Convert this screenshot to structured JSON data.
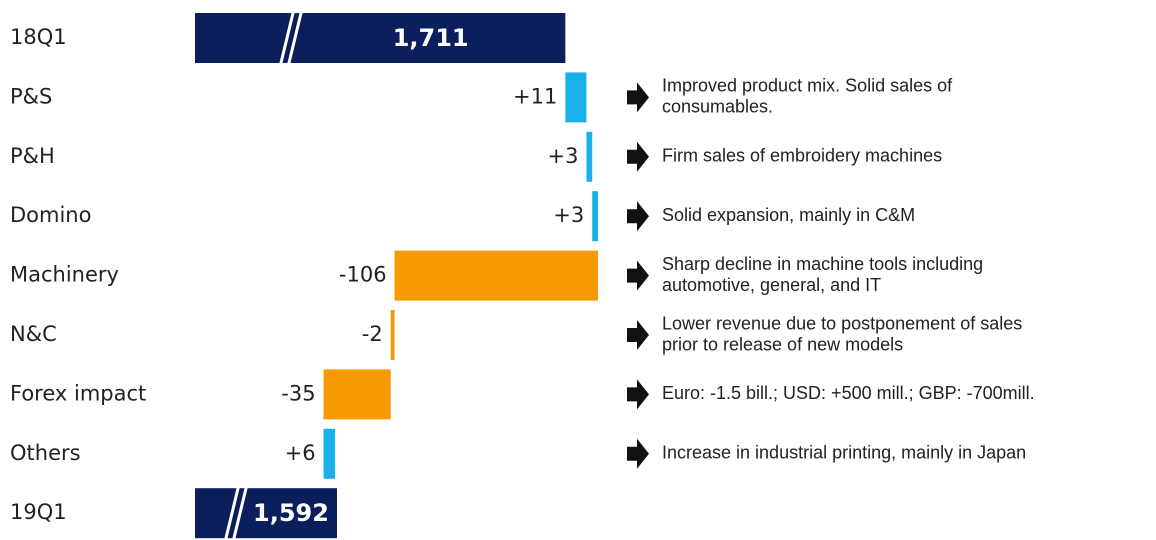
{
  "chart_data": {
    "type": "waterfall",
    "categories": [
      "18Q1",
      "P&S",
      "P&H",
      "Domino",
      "Machinery",
      "N&C",
      "Forex impact",
      "Others",
      "19Q1"
    ],
    "values": [
      1711,
      11,
      3,
      3,
      -106,
      -2,
      -35,
      6,
      1592
    ],
    "value_labels": [
      "1,711",
      "+11",
      "+3",
      "+3",
      "-106",
      "-2",
      "-35",
      "+6",
      "1,592"
    ],
    "colors": {
      "total": "#0b1f5c",
      "increase": "#1ab0e8",
      "decrease": "#f59a00"
    },
    "xlim": [
      1518,
      1740
    ],
    "annotations": [
      [
        "Improved product mix. Solid sales of",
        "consumables."
      ],
      [
        "Firm sales of embroidery machines"
      ],
      [
        "Solid expansion, mainly in C&M"
      ],
      [
        "Sharp decline in machine tools including",
        "automotive, general, and IT"
      ],
      [
        "Lower revenue due to postponement of sales",
        "prior to release of new models"
      ],
      [
        "Euro: -1.5 bill.; USD: +500 mill.; GBP: -700mill."
      ],
      [
        "Increase in industrial printing, mainly in Japan"
      ]
    ]
  }
}
